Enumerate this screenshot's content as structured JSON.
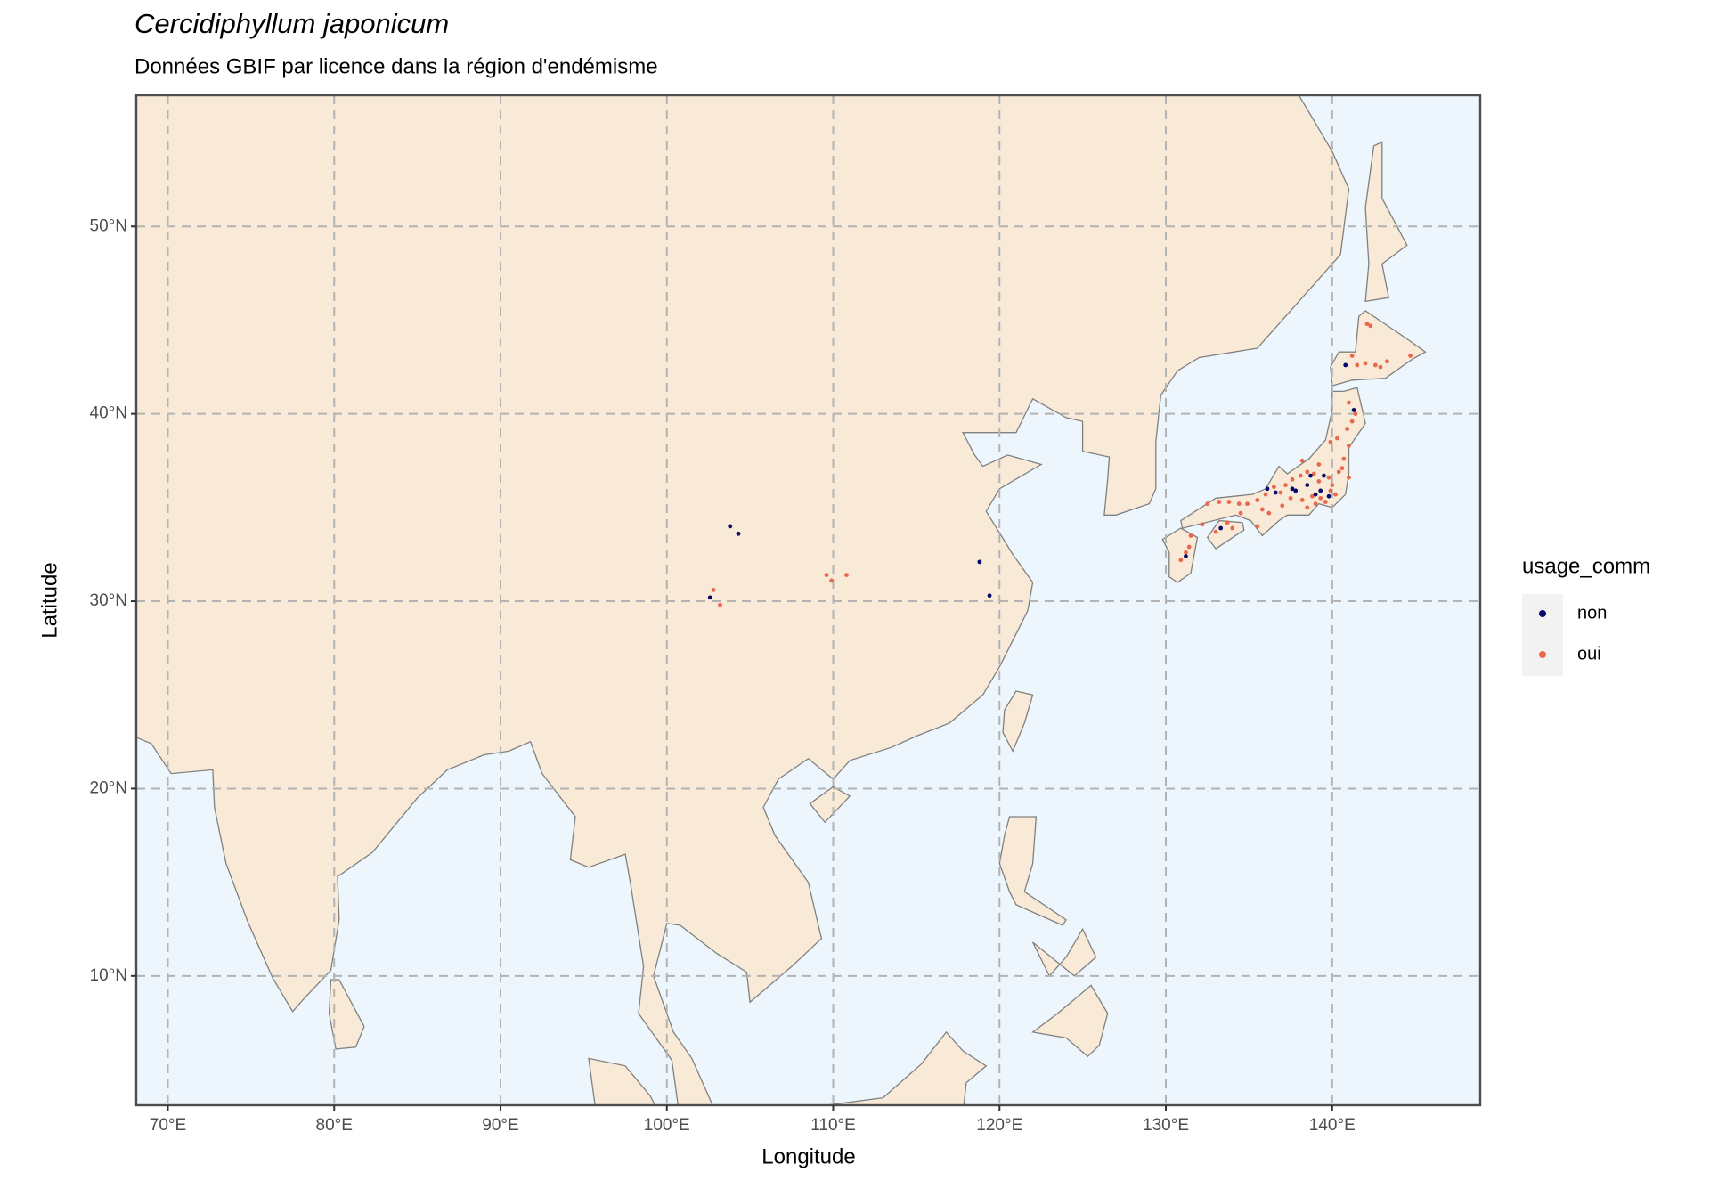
{
  "chart_data": {
    "type": "scatter",
    "title": "Cercidiphyllum japonicum",
    "subtitle": "Données GBIF par licence dans la région d'endémisme",
    "x_label": "Longitude",
    "y_label": "Latitude",
    "legend_title": "usage_comm",
    "xlim": [
      68.1,
      148.9
    ],
    "ylim": [
      3.1,
      57.0
    ],
    "xticks": [
      {
        "value": 70,
        "label": "70°E"
      },
      {
        "value": 80,
        "label": "80°E"
      },
      {
        "value": 90,
        "label": "90°E"
      },
      {
        "value": 100,
        "label": "100°E"
      },
      {
        "value": 110,
        "label": "110°E"
      },
      {
        "value": 120,
        "label": "120°E"
      },
      {
        "value": 130,
        "label": "130°E"
      },
      {
        "value": 140,
        "label": "140°E"
      }
    ],
    "yticks": [
      {
        "value": 10,
        "label": "10°N"
      },
      {
        "value": 20,
        "label": "20°N"
      },
      {
        "value": 30,
        "label": "30°N"
      },
      {
        "value": 40,
        "label": "40°N"
      },
      {
        "value": 50,
        "label": "50°N"
      }
    ],
    "grid": true,
    "series": [
      {
        "name": "non",
        "color": "#0a0a6e",
        "x": [
          103.8,
          104.3,
          102.6,
          118.8,
          119.4,
          140.8,
          141.3,
          136.6,
          137.6,
          138.5,
          139.3,
          139.0,
          139.5,
          136.1,
          138.7,
          139.8,
          133.3,
          131.2,
          137.8
        ],
        "values": [
          34.0,
          33.6,
          30.2,
          32.1,
          30.3,
          42.6,
          40.2,
          35.8,
          36.0,
          36.2,
          35.9,
          35.7,
          36.7,
          36.0,
          36.7,
          35.6,
          33.9,
          32.4,
          35.9
        ]
      },
      {
        "name": "oui",
        "color": "#e8694d",
        "x": [
          102.8,
          103.2,
          109.6,
          109.9,
          110.8,
          142.1,
          142.3,
          141.2,
          142.0,
          142.6,
          142.9,
          143.3,
          144.7,
          141.5,
          141.0,
          141.4,
          140.9,
          140.3,
          141.0,
          140.7,
          139.9,
          141.2,
          140.4,
          140.6,
          139.8,
          139.2,
          138.9,
          138.5,
          138.1,
          137.6,
          137.2,
          136.9,
          137.5,
          138.2,
          138.8,
          139.3,
          139.6,
          139.0,
          139.9,
          140.2,
          136.5,
          136.0,
          135.5,
          135.8,
          136.2,
          137.0,
          138.5,
          139.2,
          138.2,
          140.0,
          141.0,
          134.9,
          134.4,
          133.8,
          133.2,
          132.5,
          134.5,
          133.7,
          132.2,
          131.5,
          131.2,
          130.9,
          131.4,
          133.0,
          134.0,
          135.5
        ],
        "values": [
          30.6,
          29.8,
          31.4,
          31.1,
          31.4,
          44.8,
          44.7,
          43.1,
          42.7,
          42.6,
          42.5,
          42.8,
          43.1,
          42.6,
          40.6,
          40.0,
          39.2,
          38.7,
          38.3,
          37.6,
          38.5,
          39.6,
          36.9,
          37.1,
          36.6,
          36.4,
          36.8,
          36.9,
          36.7,
          36.5,
          36.2,
          35.8,
          35.5,
          35.4,
          35.6,
          35.5,
          35.3,
          35.2,
          35.9,
          35.7,
          36.1,
          35.7,
          35.4,
          34.9,
          34.7,
          35.1,
          35.0,
          37.3,
          37.5,
          36.2,
          36.6,
          35.2,
          35.2,
          35.3,
          35.3,
          35.2,
          34.7,
          34.2,
          34.1,
          33.5,
          32.6,
          32.2,
          32.9,
          33.7,
          33.9,
          34.0
        ]
      }
    ]
  }
}
